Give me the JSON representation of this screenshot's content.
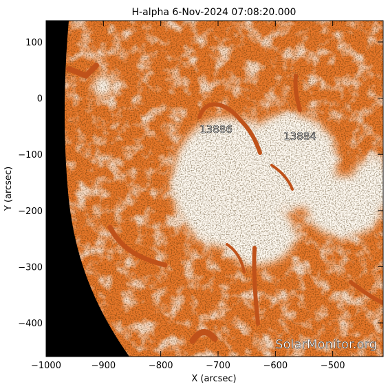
{
  "title": "H-alpha   6-Nov-2024  07:08:20.000",
  "axes": {
    "xlabel": "X (arcsec)",
    "ylabel": "Y (arcsec)",
    "xlim": [
      -1000,
      -412
    ],
    "ylim": [
      -460,
      138
    ],
    "xticks": [
      -1000,
      -900,
      -800,
      -700,
      -600,
      -500
    ],
    "yticks": [
      100,
      0,
      -100,
      -200,
      -300,
      -400
    ]
  },
  "regions": [
    {
      "label": "13886",
      "x": -725,
      "y": -55
    },
    {
      "label": "13884",
      "x": -580,
      "y": -68
    }
  ],
  "watermark": "SolarMonitor.org",
  "colors": {
    "disk_orange": "#e8782a",
    "plage_white": "#fff8f0",
    "filament_dark": "#b84a10",
    "space_black": "#000000"
  }
}
